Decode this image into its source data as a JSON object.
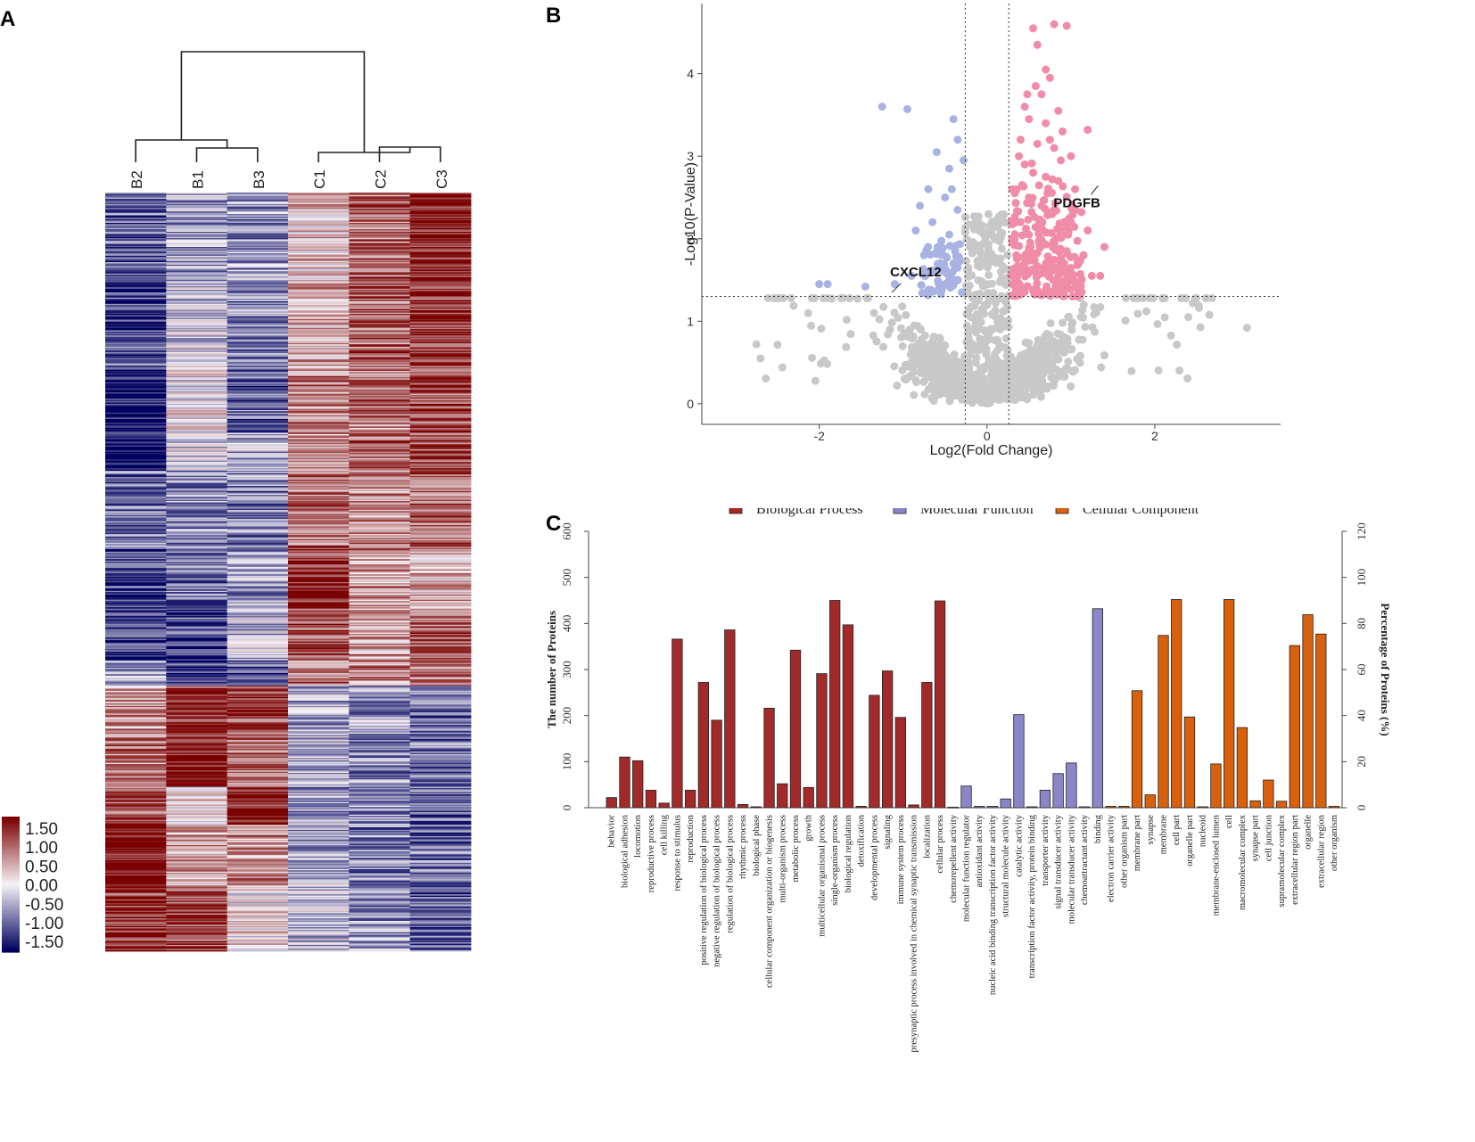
{
  "panels": {
    "a": "A",
    "b": "B",
    "c": "C"
  },
  "colors": {
    "up": "#f08ca8",
    "down": "#a9b3e3",
    "ns": "#c8c8c8",
    "heat_high": "#7a0000",
    "heat_mid": "#f6f2f6",
    "heat_low": "#00005e",
    "bp": "#a32a2a",
    "mf": "#8a86c8",
    "cc": "#d9600c"
  },
  "chart_data": [
    {
      "type": "heatmap",
      "columns": [
        "B2",
        "B1",
        "B3",
        "C1",
        "C2",
        "C3"
      ],
      "legend": {
        "labels": [
          "1.50",
          "1.00",
          "0.50",
          "0.00",
          "-0.50",
          "-1.00",
          "-1.50"
        ],
        "values": [
          1.5,
          1.0,
          0.5,
          0.0,
          -0.5,
          -1.0,
          -1.5
        ]
      },
      "row_blocks": [
        {
          "rows": 70,
          "values": [
            -0.9,
            -0.5,
            -0.6,
            0.3,
            0.9,
            1.4
          ]
        },
        {
          "rows": 30,
          "values": [
            -1.1,
            -0.3,
            -0.7,
            0.5,
            0.8,
            1.3
          ]
        },
        {
          "rows": 40,
          "values": [
            -1.0,
            -0.2,
            -0.8,
            0.4,
            0.9,
            1.2
          ]
        },
        {
          "rows": 50,
          "values": [
            -1.4,
            0.0,
            -0.9,
            0.7,
            0.8,
            1.0
          ]
        },
        {
          "rows": 30,
          "values": [
            -1.5,
            -0.2,
            -0.4,
            0.6,
            0.9,
            1.1
          ]
        },
        {
          "rows": 60,
          "values": [
            -0.8,
            -0.6,
            -0.7,
            0.8,
            0.7,
            0.9
          ]
        },
        {
          "rows": 50,
          "values": [
            -1.0,
            -0.8,
            -0.5,
            1.2,
            0.6,
            0.4
          ]
        },
        {
          "rows": 40,
          "values": [
            -1.2,
            -1.1,
            -0.3,
            1.0,
            0.5,
            0.9
          ]
        },
        {
          "rows": 20,
          "values": [
            -0.6,
            -1.2,
            -1.0,
            0.8,
            0.7,
            0.8
          ]
        },
        {
          "rows": 40,
          "values": [
            0.6,
            1.3,
            1.1,
            -0.5,
            -0.6,
            -0.9
          ]
        },
        {
          "rows": 40,
          "values": [
            0.7,
            1.5,
            0.8,
            -0.4,
            -0.7,
            -0.8
          ]
        },
        {
          "rows": 30,
          "values": [
            1.0,
            0.2,
            1.4,
            -0.5,
            -0.6,
            -0.9
          ]
        },
        {
          "rows": 50,
          "values": [
            1.5,
            0.5,
            0.6,
            -0.4,
            -0.7,
            -0.8
          ]
        },
        {
          "rows": 50,
          "values": [
            1.2,
            1.1,
            0.1,
            -0.3,
            -0.6,
            -1.0
          ]
        }
      ]
    },
    {
      "type": "scatter",
      "xlabel": "Log2(Fold Change)",
      "ylabel": "-Log10(P-Value)",
      "xlim": [
        -3.4,
        3.5
      ],
      "ylim": [
        -0.25,
        4.85
      ],
      "xticks": [
        -2,
        0,
        2
      ],
      "yticks": [
        0,
        1,
        2,
        3,
        4
      ],
      "thresholds": {
        "fc": [
          -0.26,
          0.26
        ],
        "p": 1.3
      },
      "annotations": [
        {
          "label": "PDGFB",
          "x": 0.92,
          "y": 2.47
        },
        {
          "label": "CXCL12",
          "x": -1.07,
          "y": 1.35
        }
      ],
      "up_points": [
        [
          0.55,
          4.55
        ],
        [
          0.8,
          4.6
        ],
        [
          0.95,
          4.58
        ],
        [
          0.6,
          4.35
        ],
        [
          0.7,
          4.05
        ],
        [
          0.58,
          3.85
        ],
        [
          0.75,
          3.95
        ],
        [
          0.65,
          3.75
        ],
        [
          0.85,
          3.55
        ],
        [
          1.2,
          3.32
        ],
        [
          0.45,
          3.6
        ],
        [
          0.5,
          3.45
        ],
        [
          0.7,
          3.4
        ],
        [
          0.9,
          3.3
        ],
        [
          0.4,
          3.2
        ],
        [
          0.6,
          3.15
        ],
        [
          0.8,
          3.1
        ],
        [
          1.0,
          3.0
        ],
        [
          0.45,
          2.9
        ],
        [
          0.55,
          2.8
        ],
        [
          0.7,
          2.75
        ],
        [
          0.85,
          2.7
        ],
        [
          1.05,
          2.6
        ],
        [
          0.3,
          2.6
        ],
        [
          0.5,
          2.5
        ],
        [
          0.65,
          2.4
        ],
        [
          0.8,
          2.35
        ],
        [
          1.0,
          2.2
        ],
        [
          1.2,
          2.1
        ],
        [
          0.35,
          2.2
        ],
        [
          0.5,
          2.05
        ],
        [
          0.62,
          1.95
        ],
        [
          0.78,
          1.9
        ],
        [
          0.95,
          1.85
        ],
        [
          1.15,
          1.8
        ],
        [
          1.4,
          1.9
        ],
        [
          0.35,
          1.8
        ],
        [
          0.45,
          1.7
        ],
        [
          0.58,
          1.65
        ],
        [
          0.7,
          1.6
        ],
        [
          0.85,
          1.55
        ],
        [
          1.0,
          1.5
        ],
        [
          1.25,
          1.55
        ],
        [
          1.35,
          1.55
        ],
        [
          0.3,
          1.45
        ],
        [
          0.4,
          1.4
        ],
        [
          0.55,
          1.38
        ],
        [
          0.68,
          1.35
        ],
        [
          0.82,
          1.42
        ],
        [
          1.1,
          1.4
        ],
        [
          0.42,
          2.65
        ],
        [
          0.72,
          2.55
        ],
        [
          0.88,
          2.95
        ],
        [
          0.38,
          3.0
        ],
        [
          0.66,
          2.2
        ],
        [
          0.52,
          1.9
        ],
        [
          0.92,
          1.7
        ],
        [
          0.3,
          2.0
        ],
        [
          0.75,
          3.2
        ],
        [
          0.48,
          3.75
        ]
      ],
      "down_points": [
        [
          -1.25,
          3.6
        ],
        [
          -0.95,
          3.57
        ],
        [
          -0.4,
          3.45
        ],
        [
          -0.35,
          3.2
        ],
        [
          -0.6,
          3.05
        ],
        [
          -0.45,
          2.85
        ],
        [
          -0.7,
          2.6
        ],
        [
          -0.5,
          2.5
        ],
        [
          -0.35,
          2.35
        ],
        [
          -0.65,
          2.2
        ],
        [
          -0.85,
          2.1
        ],
        [
          -0.45,
          2.05
        ],
        [
          -0.55,
          1.9
        ],
        [
          -0.75,
          1.8
        ],
        [
          -0.4,
          1.7
        ],
        [
          -0.6,
          1.6
        ],
        [
          -0.9,
          1.55
        ],
        [
          -0.35,
          1.5
        ],
        [
          -0.5,
          1.45
        ],
        [
          -1.1,
          1.45
        ],
        [
          -1.9,
          1.45
        ],
        [
          -2.0,
          1.45
        ],
        [
          -1.45,
          1.42
        ],
        [
          -0.7,
          1.38
        ],
        [
          -0.3,
          1.35
        ],
        [
          -0.55,
          1.33
        ],
        [
          -0.42,
          2.6
        ],
        [
          -0.28,
          2.95
        ],
        [
          -0.8,
          2.4
        ],
        [
          -0.38,
          1.85
        ]
      ],
      "ns_seed": 7,
      "ns_count": 1500
    },
    {
      "type": "bar",
      "legend": [
        "Biological Process",
        "Molecular Function",
        "Cellular Component"
      ],
      "ylabel": "The number of Proteins",
      "y2label": "Percentage of Proteins (%)",
      "ylim": [
        0,
        600
      ],
      "y2lim": [
        0,
        120
      ],
      "yticks": [
        0,
        100,
        200,
        300,
        400,
        500,
        600
      ],
      "y2ticks": [
        0,
        20,
        40,
        60,
        80,
        100,
        120
      ],
      "bars": [
        {
          "label": "behavior",
          "group": 0,
          "value": 22
        },
        {
          "label": "biological adhesion",
          "group": 0,
          "value": 110
        },
        {
          "label": "locomotion",
          "group": 0,
          "value": 102
        },
        {
          "label": "reproductive process",
          "group": 0,
          "value": 38
        },
        {
          "label": "cell killing",
          "group": 0,
          "value": 10
        },
        {
          "label": "response to stimulus",
          "group": 0,
          "value": 366
        },
        {
          "label": "reproduction",
          "group": 0,
          "value": 38
        },
        {
          "label": "positive regulation of biological process",
          "group": 0,
          "value": 272
        },
        {
          "label": "negative regulation of biological process",
          "group": 0,
          "value": 190
        },
        {
          "label": "regulation of biological process",
          "group": 0,
          "value": 386
        },
        {
          "label": "rhythmic process",
          "group": 0,
          "value": 7
        },
        {
          "label": "biological phase",
          "group": 0,
          "value": 2
        },
        {
          "label": "cellular component organization or biogenesis",
          "group": 0,
          "value": 216
        },
        {
          "label": "multi-organism process",
          "group": 0,
          "value": 52
        },
        {
          "label": "metabolic process",
          "group": 0,
          "value": 342
        },
        {
          "label": "growth",
          "group": 0,
          "value": 44
        },
        {
          "label": "multicellular organismal process",
          "group": 0,
          "value": 291
        },
        {
          "label": "single-organism process",
          "group": 0,
          "value": 450
        },
        {
          "label": "biological regulation",
          "group": 0,
          "value": 397
        },
        {
          "label": "detoxification",
          "group": 0,
          "value": 3
        },
        {
          "label": "developmental process",
          "group": 0,
          "value": 244
        },
        {
          "label": "signaling",
          "group": 0,
          "value": 297
        },
        {
          "label": "immune system process",
          "group": 0,
          "value": 196
        },
        {
          "label": "presynaptic process involved in chemical synaptic transmission",
          "group": 0,
          "value": 6
        },
        {
          "label": "localization",
          "group": 0,
          "value": 272
        },
        {
          "label": "cellular process",
          "group": 0,
          "value": 449
        },
        {
          "label": "chemorepellent activity",
          "group": 1,
          "value": 1
        },
        {
          "label": "molecular function regulator",
          "group": 1,
          "value": 47
        },
        {
          "label": "antioxidant activity",
          "group": 1,
          "value": 3
        },
        {
          "label": "nucleic acid binding transcription factor activity",
          "group": 1,
          "value": 3
        },
        {
          "label": "structural molecule activity",
          "group": 1,
          "value": 19
        },
        {
          "label": "catalytic activity",
          "group": 1,
          "value": 202
        },
        {
          "label": "transcription factor activity, protein binding",
          "group": 1,
          "value": 2
        },
        {
          "label": "transporter activity",
          "group": 1,
          "value": 38
        },
        {
          "label": "signal transducer activity",
          "group": 1,
          "value": 74
        },
        {
          "label": "molecular transducer activity",
          "group": 1,
          "value": 97
        },
        {
          "label": "chemoattractant activity",
          "group": 1,
          "value": 2
        },
        {
          "label": "binding",
          "group": 1,
          "value": 432
        },
        {
          "label": "electron carrier activity",
          "group": 2,
          "value": 3
        },
        {
          "label": "other organism part",
          "group": 2,
          "value": 3
        },
        {
          "label": "membrane part",
          "group": 2,
          "value": 254
        },
        {
          "label": "synapse",
          "group": 2,
          "value": 28
        },
        {
          "label": "membrane",
          "group": 2,
          "value": 374
        },
        {
          "label": "cell part",
          "group": 2,
          "value": 452
        },
        {
          "label": "organelle part",
          "group": 2,
          "value": 197
        },
        {
          "label": "nucleoid",
          "group": 2,
          "value": 2
        },
        {
          "label": "membrane-enclosed lumen",
          "group": 2,
          "value": 95
        },
        {
          "label": "cell",
          "group": 2,
          "value": 452
        },
        {
          "label": "macromolecular complex",
          "group": 2,
          "value": 174
        },
        {
          "label": "synapse part",
          "group": 2,
          "value": 15
        },
        {
          "label": "cell junction",
          "group": 2,
          "value": 60
        },
        {
          "label": "supramolecular complex",
          "group": 2,
          "value": 14
        },
        {
          "label": "extracellular region part",
          "group": 2,
          "value": 352
        },
        {
          "label": "organelle",
          "group": 2,
          "value": 419
        },
        {
          "label": "extracellular region",
          "group": 2,
          "value": 377
        },
        {
          "label": "other organism",
          "group": 2,
          "value": 3
        }
      ]
    }
  ]
}
